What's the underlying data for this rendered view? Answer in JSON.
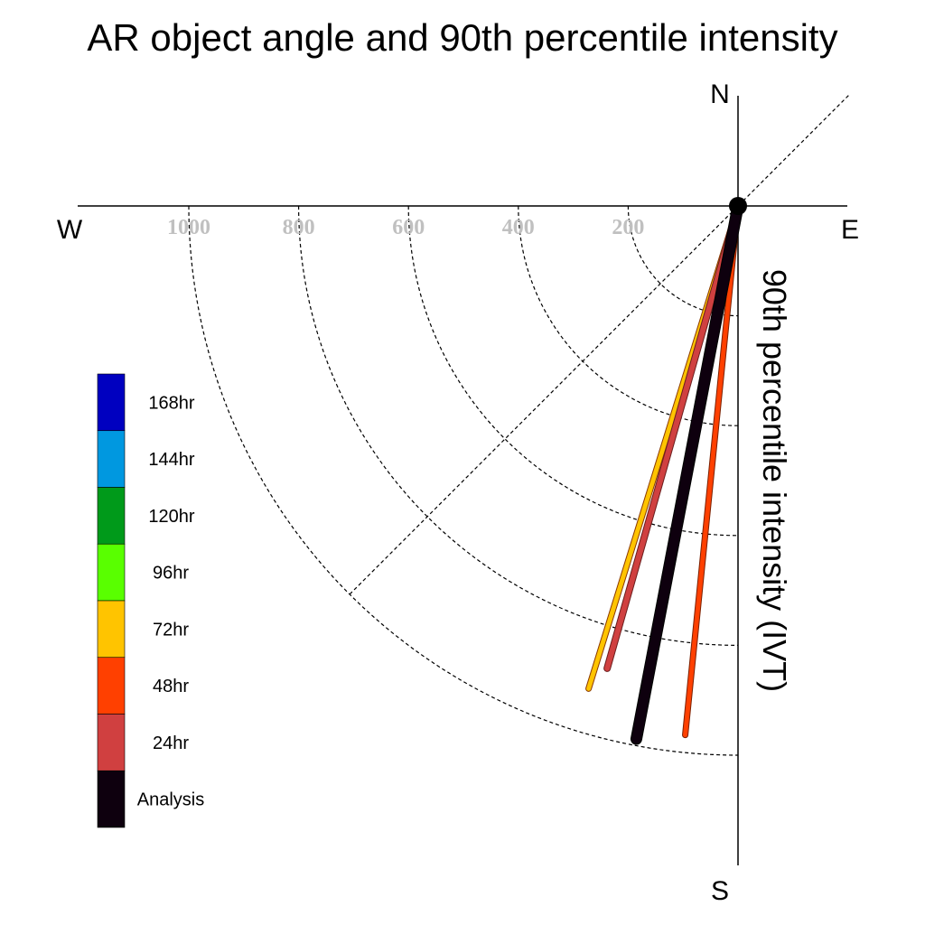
{
  "chart_data": {
    "type": "polar-vector",
    "title": "AR object angle and 90th percentile intensity",
    "radial_axis_label": "90th percentile intensity (IVT)",
    "compass": {
      "north": "N",
      "south": "S",
      "east": "E",
      "west": "W"
    },
    "ring_values": [
      200,
      400,
      600,
      800,
      1000
    ],
    "ring_labels": [
      "200",
      "400",
      "600",
      "800",
      "1000"
    ],
    "radial_max": 1000,
    "diagonal_guide_deg": 45,
    "series": [
      {
        "name": "72hr",
        "angle_deg": 17.2,
        "intensity": 920,
        "color": "#FFC400",
        "outline": "#8B3A00",
        "width": 5
      },
      {
        "name": "24hr",
        "angle_deg": 15.8,
        "intensity": 875,
        "color": "#D04040",
        "outline": "#6B1F1F",
        "width": 6
      },
      {
        "name": "48hr",
        "angle_deg": 5.7,
        "intensity": 968,
        "color": "#FF4000",
        "outline": "#7A2000",
        "width": 5
      },
      {
        "name": "Analysis",
        "angle_deg": 10.8,
        "intensity": 988,
        "color": "#0E000E",
        "outline": "#000000",
        "width": 11
      }
    ],
    "legend": [
      {
        "label": "168hr",
        "color": "#0000C0"
      },
      {
        "label": "144hr",
        "color": "#0098E0"
      },
      {
        "label": "120hr",
        "color": "#009A1A"
      },
      {
        "label": "96hr",
        "color": "#59FF00"
      },
      {
        "label": "72hr",
        "color": "#FFC400"
      },
      {
        "label": "48hr",
        "color": "#FF4000"
      },
      {
        "label": "24hr",
        "color": "#D04040"
      },
      {
        "label": "Analysis",
        "color": "#0E000E"
      }
    ]
  }
}
